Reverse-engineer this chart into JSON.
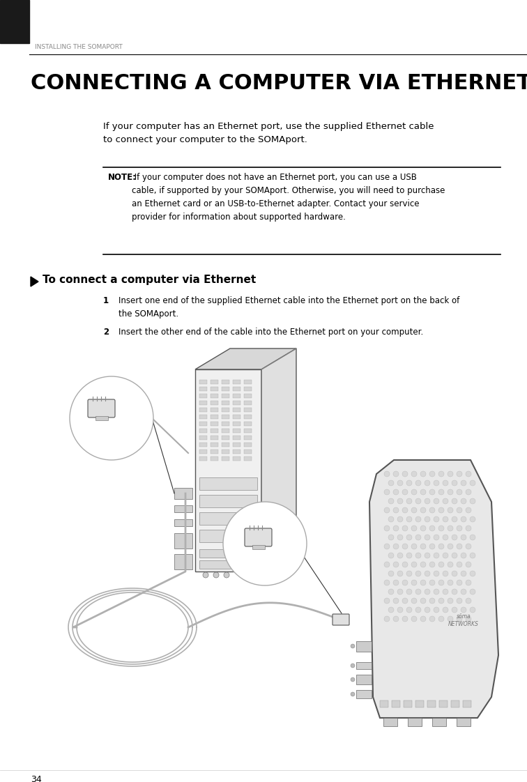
{
  "bg_color": "#ffffff",
  "page_width": 7.56,
  "page_height": 11.22,
  "dpi": 100,
  "header_bar_color": "#1a1a1a",
  "header_text": "INSTALLING THE SOMAPORT",
  "header_text_color": "#888888",
  "header_text_size": 6.5,
  "title_text": "CONNECTING A COMPUTER VIA ETHERNET",
  "title_size": 22,
  "title_color": "#000000",
  "body_text_1": "If your computer has an Ethernet port, use the supplied Ethernet cable\nto connect your computer to the SOMAport.",
  "body_size": 9.5,
  "body_color": "#000000",
  "note_bold": "NOTE:",
  "note_text": " If your computer does not have an Ethernet port, you can use a USB\ncable, if supported by your SOMAport. Otherwise, you will need to purchase\nan Ethernet card or an USB-to-Ethernet adapter. Contact your service\nprovider for information about supported hardware.",
  "note_text_size": 8.5,
  "note_line_color": "#000000",
  "section_title": "To connect a computer via Ethernet",
  "section_title_size": 11,
  "step1_num": "1",
  "step1_text": "Insert one end of the supplied Ethernet cable into the Ethernet port on the back of\nthe SOMAport.",
  "step2_num": "2",
  "step2_text": "Insert the other end of the cable into the Ethernet port on your computer.",
  "step_text_size": 8.5,
  "footer_text": "34",
  "footer_size": 9,
  "line_color": "#000000",
  "cable_color": "#aaaaaa",
  "device_edge": "#555555",
  "device_face": "#eeeeee",
  "soma_face": "#e8e8e8",
  "soma_edge": "#555555"
}
